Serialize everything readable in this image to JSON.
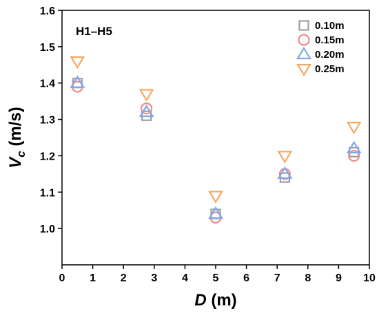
{
  "chart_data": {
    "type": "scatter",
    "annotation": "H1–H5",
    "xlabel_main": "D",
    "xlabel_unit": " (m)",
    "ylabel_main": "V",
    "ylabel_sub": "c",
    "ylabel_unit": " (m/s)",
    "xlim": [
      0,
      10
    ],
    "ylim": [
      0.9,
      1.6
    ],
    "xticks": [
      0,
      1,
      2,
      3,
      4,
      5,
      6,
      7,
      8,
      9,
      10
    ],
    "yticks": [
      1.0,
      1.1,
      1.2,
      1.3,
      1.4,
      1.5,
      1.6
    ],
    "ytick_labels": [
      "1.0",
      "1.1",
      "1.2",
      "1.3",
      "1.4",
      "1.5",
      "1.6"
    ],
    "grid": false,
    "legend_position": "top-right",
    "series": [
      {
        "name": "0.10m",
        "marker": "square",
        "color": "#9e9e9e",
        "x": [
          0.5,
          2.75,
          5.0,
          7.25,
          9.5
        ],
        "y": [
          1.4,
          1.31,
          1.04,
          1.14,
          1.21
        ]
      },
      {
        "name": "0.15m",
        "marker": "circle",
        "color": "#f08a8a",
        "x": [
          0.5,
          2.75,
          5.0,
          7.25,
          9.5
        ],
        "y": [
          1.39,
          1.33,
          1.03,
          1.15,
          1.2
        ]
      },
      {
        "name": "0.20m",
        "marker": "triangle-up",
        "color": "#7fa8e8",
        "x": [
          0.5,
          2.75,
          5.0,
          7.25,
          9.5
        ],
        "y": [
          1.4,
          1.32,
          1.04,
          1.15,
          1.22
        ]
      },
      {
        "name": "0.25m",
        "marker": "triangle-down",
        "color": "#f6a860",
        "x": [
          0.5,
          2.75,
          5.0,
          7.25,
          9.5
        ],
        "y": [
          1.46,
          1.37,
          1.09,
          1.2,
          1.28
        ]
      }
    ]
  }
}
